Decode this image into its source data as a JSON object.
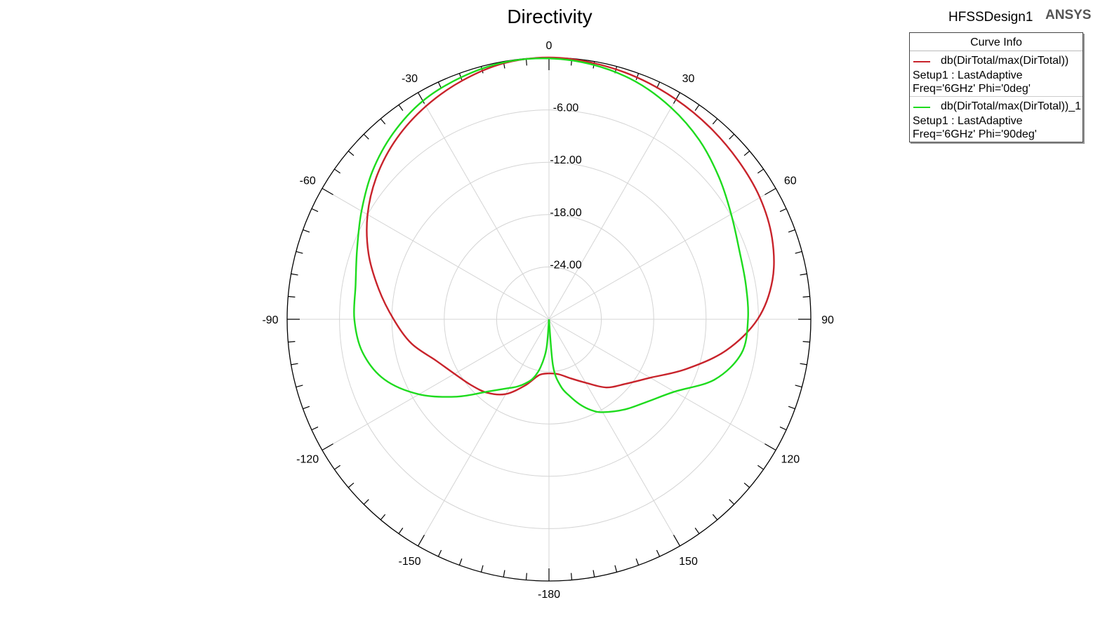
{
  "header": {
    "title": "Directivity",
    "design_name": "HFSSDesign1",
    "brand": "ANSYS"
  },
  "legend": {
    "header": "Curve Info",
    "entries": [
      {
        "name": "db(DirTotal/max(DirTotal))",
        "setup": "Setup1 : LastAdaptive",
        "params": "Freq='6GHz' Phi='0deg'",
        "color": "#c8232b"
      },
      {
        "name": "db(DirTotal/max(DirTotal))_1",
        "setup": "Setup1 : LastAdaptive",
        "params": "Freq='6GHz' Phi='90deg'",
        "color": "#1edb1e"
      }
    ]
  },
  "chart_data": {
    "type": "polar",
    "title": "Directivity",
    "radial_range_db": [
      -30,
      0
    ],
    "radial_tick_labels": [
      "-6.00",
      "-12.00",
      "-18.00",
      "-24.00"
    ],
    "radial_ticks": [
      -6,
      -12,
      -18,
      -24
    ],
    "angle_tick_labels": [
      "0",
      "30",
      "60",
      "90",
      "120",
      "150",
      "-180",
      "-150",
      "-120",
      "-90",
      "-60",
      "-30"
    ],
    "angle_ticks_deg": [
      0,
      30,
      60,
      90,
      120,
      150,
      180,
      -150,
      -120,
      -90,
      -60,
      -30
    ],
    "angle_direction": "clockwise, 0 at top",
    "grid": true,
    "legend_position": "top-right",
    "series": [
      {
        "name": "db(DirTotal/max(DirTotal))",
        "color": "#c8232b",
        "theta_deg": [
          -180,
          -170,
          -160,
          -150,
          -140,
          -130,
          -120,
          -110,
          -100,
          -90,
          -80,
          -70,
          -60,
          -50,
          -40,
          -30,
          -20,
          -10,
          0,
          10,
          20,
          30,
          40,
          50,
          60,
          70,
          80,
          90,
          100,
          110,
          120,
          130,
          140,
          150,
          160,
          170,
          180
        ],
        "db": [
          -23.8,
          -23.5,
          -21.9,
          -20.1,
          -19.0,
          -18.3,
          -17.5,
          -16.2,
          -14.0,
          -12.2,
          -10.2,
          -8.0,
          -6.0,
          -4.3,
          -2.9,
          -1.8,
          -0.9,
          -0.2,
          0.0,
          -0.2,
          -0.5,
          -0.9,
          -1.3,
          -1.7,
          -2.1,
          -2.8,
          -4.0,
          -6.1,
          -9.4,
          -13.3,
          -16.6,
          -18.5,
          -19.8,
          -21.6,
          -22.8,
          -23.6,
          -23.8
        ]
      },
      {
        "name": "db(DirTotal/max(DirTotal))_1",
        "color": "#1edb1e",
        "theta_deg": [
          -180,
          -175,
          -170,
          -165,
          -160,
          -155,
          -150,
          -140,
          -130,
          -120,
          -110,
          -100,
          -90,
          -80,
          -70,
          -60,
          -50,
          -40,
          -30,
          -20,
          -10,
          0,
          10,
          20,
          30,
          40,
          50,
          60,
          70,
          80,
          90,
          100,
          110,
          120,
          130,
          140,
          150,
          155,
          160,
          165,
          170,
          175,
          180
        ],
        "db": [
          -30,
          -26.6,
          -24.4,
          -23.0,
          -22.2,
          -21.5,
          -20.9,
          -19.2,
          -16.2,
          -12.8,
          -9.9,
          -8.3,
          -7.7,
          -7.5,
          -6.6,
          -5.2,
          -3.6,
          -2.2,
          -1.1,
          -0.5,
          -0.1,
          -0.1,
          -0.4,
          -1.0,
          -2.0,
          -3.2,
          -4.6,
          -5.9,
          -6.8,
          -7.1,
          -7.2,
          -7.6,
          -9.8,
          -13.4,
          -15.3,
          -16.5,
          -17.7,
          -18.5,
          -19.6,
          -20.9,
          -22.2,
          -24.6,
          -30
        ]
      }
    ]
  }
}
